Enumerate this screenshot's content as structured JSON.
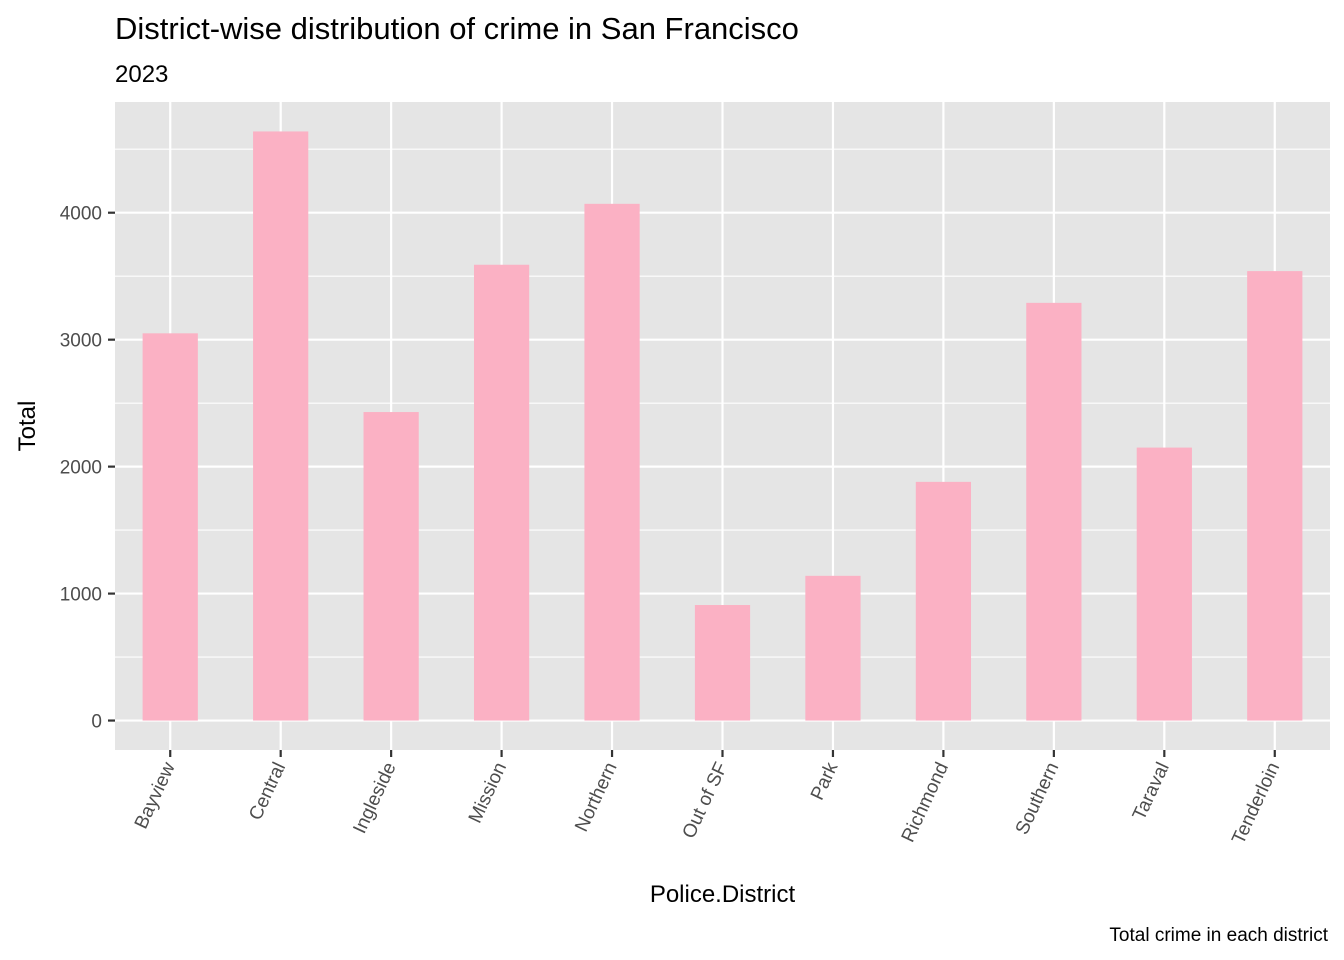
{
  "chart_data": {
    "type": "bar",
    "title": "District-wise distribution of crime in San Francisco",
    "subtitle": "2023",
    "caption": "Total crime in each district",
    "xlabel": "Police.District",
    "ylabel": "Total",
    "categories": [
      "Bayview",
      "Central",
      "Ingleside",
      "Mission",
      "Northern",
      "Out of SF",
      "Park",
      "Richmond",
      "Southern",
      "Taraval",
      "Tenderloin"
    ],
    "values": [
      3050,
      4640,
      2430,
      3590,
      4070,
      910,
      1140,
      1880,
      3290,
      2150,
      3540
    ],
    "yticks": [
      0,
      1000,
      2000,
      3000,
      4000
    ],
    "ylim": [
      -232,
      4872
    ],
    "grid": true,
    "legend": "none",
    "colors": {
      "bar": "#fbb1c4",
      "panel": "#e5e5e5",
      "grid": "#ffffff",
      "tick": "#4d4d4d"
    }
  }
}
